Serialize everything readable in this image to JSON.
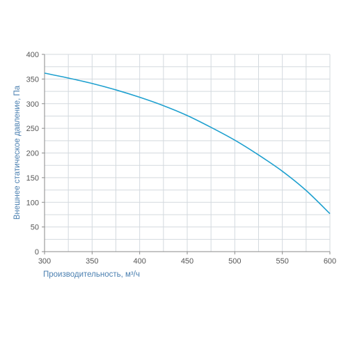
{
  "chart_data": {
    "type": "line",
    "title": "",
    "xlabel": "Производительность, м³/ч",
    "ylabel": "Внешнее статическое давление, Па",
    "xlim": [
      300,
      600
    ],
    "ylim": [
      0,
      400
    ],
    "x_ticks": [
      300,
      350,
      400,
      450,
      500,
      550,
      600
    ],
    "y_ticks": [
      0,
      50,
      100,
      150,
      200,
      250,
      300,
      350,
      400
    ],
    "grid": true,
    "legend": "none",
    "series": [
      {
        "color": "#1ea0cf",
        "x": [
          300,
          325,
          350,
          375,
          400,
          425,
          450,
          475,
          500,
          525,
          550,
          575,
          600
        ],
        "y": [
          362,
          352,
          341,
          328,
          313,
          296,
          276,
          252,
          226,
          196,
          163,
          124,
          77
        ]
      }
    ],
    "colors": {
      "grid": "#d3d9de",
      "axis": "#8a8a8a",
      "line": "#1ea0cf",
      "axis_title": "#4a7fb0"
    }
  }
}
